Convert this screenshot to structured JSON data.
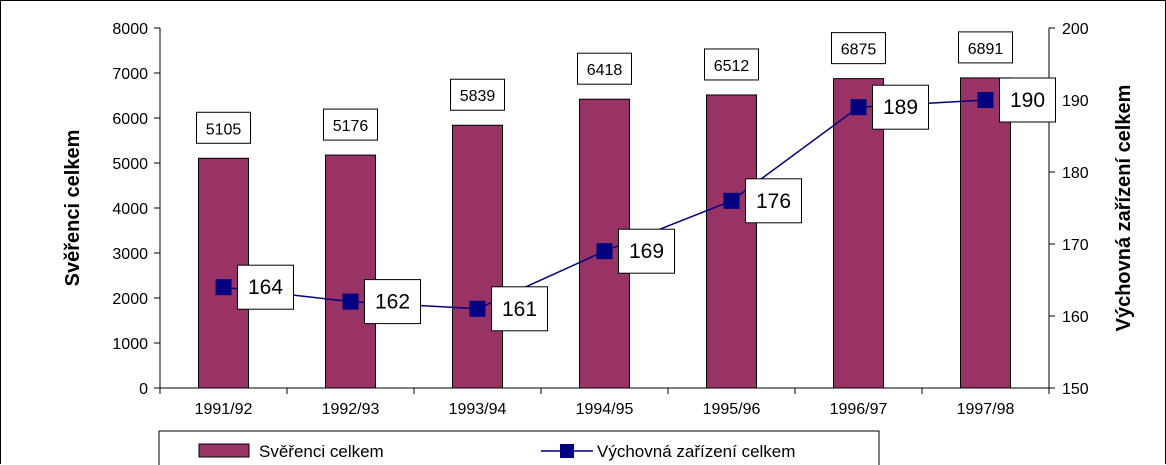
{
  "chart_data": {
    "type": "bar",
    "categories": [
      "1991/92",
      "1992/93",
      "1993/94",
      "1994/95",
      "1995/96",
      "1996/97",
      "1997/98"
    ],
    "series": [
      {
        "name": "Svěřenci celkem",
        "type": "bar",
        "axis": "left",
        "values": [
          5105,
          5176,
          5839,
          6418,
          6512,
          6875,
          6891
        ]
      },
      {
        "name": "Výchovná zařízení celkem",
        "type": "line",
        "axis": "right",
        "values": [
          164,
          162,
          161,
          169,
          176,
          189,
          190
        ]
      }
    ],
    "ylabel": "Svěřenci celkem",
    "y2label": "Výchovná zařízení celkem",
    "ylim": [
      0,
      8000
    ],
    "y2lim": [
      150,
      200
    ],
    "yticks": [
      0,
      1000,
      2000,
      3000,
      4000,
      5000,
      6000,
      7000,
      8000
    ],
    "y2ticks": [
      150,
      160,
      170,
      180,
      190,
      200
    ],
    "grid": false,
    "legend_position": "bottom",
    "colors": {
      "bar": "#993366",
      "line": "#000080"
    }
  }
}
